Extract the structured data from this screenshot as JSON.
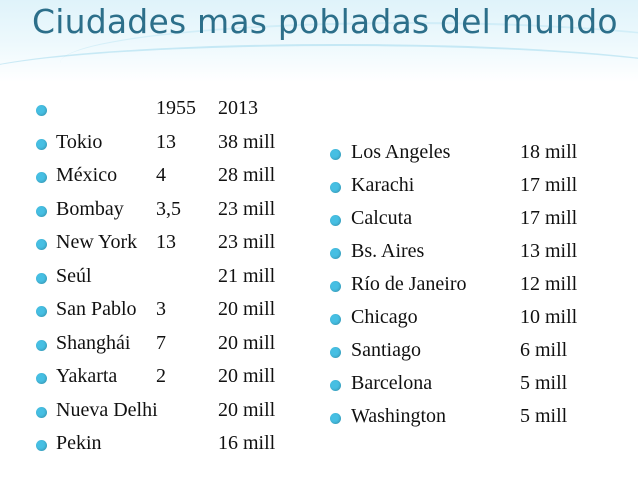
{
  "slide": {
    "title": "Ciudades mas pobladas del mundo"
  },
  "table_left": {
    "header": {
      "city": "",
      "y1955": "1955",
      "y2013": "2013"
    },
    "rows": [
      {
        "city": "Tokio",
        "y1955": "13",
        "y2013": "38 mill"
      },
      {
        "city": "México",
        "y1955": "4",
        "y2013": "28 mill"
      },
      {
        "city": "Bombay",
        "y1955": "3,5",
        "y2013": "23 mill"
      },
      {
        "city": "New York",
        "y1955": "13",
        "y2013": "23 mill"
      },
      {
        "city": "Seúl",
        "y1955": "",
        "y2013": "21 mill"
      },
      {
        "city": "San Pablo",
        "y1955": "3",
        "y2013": "20 mill"
      },
      {
        "city": "Shanghái",
        "y1955": "7",
        "y2013": "20 mill"
      },
      {
        "city": "Yakarta",
        "y1955": "2",
        "y2013": "20 mill"
      },
      {
        "city": "Nueva Delhi",
        "y1955": "",
        "y2013": "20 mill"
      },
      {
        "city": "Pekin",
        "y1955": "",
        "y2013": "16 mill"
      }
    ]
  },
  "table_right": {
    "rows": [
      {
        "city": "Los Angeles",
        "y2013": "18 mill"
      },
      {
        "city": "Karachi",
        "y2013": "17 mill"
      },
      {
        "city": "Calcuta",
        "y2013": "17 mill"
      },
      {
        "city": "Bs. Aires",
        "y2013": "13 mill"
      },
      {
        "city": "Río de Janeiro",
        "y2013": "12 mill"
      },
      {
        "city": "Chicago",
        "y2013": "10 mill"
      },
      {
        "city": "Santiago",
        "y2013": "6 mill"
      },
      {
        "city": "Barcelona",
        "y2013": "5 mill"
      },
      {
        "city": "Washington",
        "y2013": "5 mill"
      }
    ]
  },
  "colors": {
    "title": "#2c6f8a",
    "bullet": "#46bfe3",
    "text": "#111111"
  }
}
